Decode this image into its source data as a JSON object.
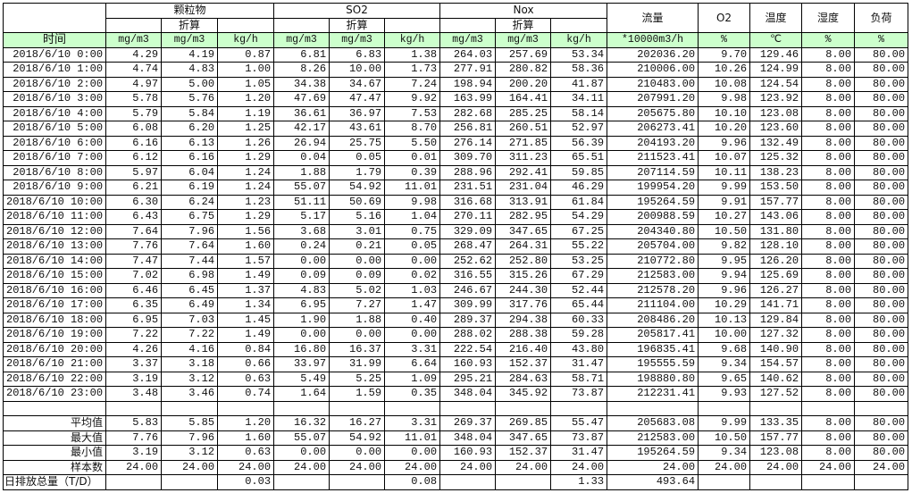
{
  "header": {
    "groups": [
      "颗粒物",
      "SO2",
      "Nox"
    ],
    "converted_label": "折算",
    "singles": [
      "流量",
      "O2",
      "温度",
      "湿度",
      "负荷"
    ],
    "time_label": "时间",
    "units": [
      "mg/m3",
      "mg/m3",
      "kg/h",
      "mg/m3",
      "mg/m3",
      "kg/h",
      "mg/m3",
      "mg/m3",
      "kg/h",
      "*10000m3/h",
      "%",
      "℃",
      "%",
      "%"
    ]
  },
  "colors": {
    "unit_row_bg": "#ccffcc",
    "border": "#000000"
  },
  "rows": [
    [
      "2018/6/10 0:00",
      "4.29",
      "4.19",
      "0.87",
      "6.81",
      "6.83",
      "1.38",
      "264.03",
      "257.69",
      "53.34",
      "202036.20",
      "9.70",
      "129.46",
      "8.00",
      "80.00"
    ],
    [
      "2018/6/10 1:00",
      "4.74",
      "4.83",
      "1.00",
      "8.26",
      "10.00",
      "1.73",
      "277.91",
      "280.82",
      "58.36",
      "210006.00",
      "10.26",
      "124.99",
      "8.00",
      "80.00"
    ],
    [
      "2018/6/10 2:00",
      "4.97",
      "5.00",
      "1.05",
      "34.38",
      "34.67",
      "7.24",
      "198.94",
      "200.20",
      "41.87",
      "210483.00",
      "10.08",
      "124.54",
      "8.00",
      "80.00"
    ],
    [
      "2018/6/10 3:00",
      "5.78",
      "5.76",
      "1.20",
      "47.69",
      "47.47",
      "9.92",
      "163.99",
      "164.41",
      "34.11",
      "207991.20",
      "9.98",
      "123.92",
      "8.00",
      "80.00"
    ],
    [
      "2018/6/10 4:00",
      "5.79",
      "5.84",
      "1.19",
      "36.61",
      "36.97",
      "7.53",
      "282.68",
      "285.25",
      "58.14",
      "205675.80",
      "10.10",
      "123.08",
      "8.00",
      "80.00"
    ],
    [
      "2018/6/10 5:00",
      "6.08",
      "6.20",
      "1.25",
      "42.17",
      "43.61",
      "8.70",
      "256.81",
      "260.51",
      "52.97",
      "206273.41",
      "10.20",
      "123.60",
      "8.00",
      "80.00"
    ],
    [
      "2018/6/10 6:00",
      "6.16",
      "6.13",
      "1.26",
      "26.94",
      "25.75",
      "5.50",
      "276.14",
      "271.85",
      "56.39",
      "204193.20",
      "9.96",
      "132.49",
      "8.00",
      "80.00"
    ],
    [
      "2018/6/10 7:00",
      "6.12",
      "6.16",
      "1.29",
      "0.04",
      "0.05",
      "0.01",
      "309.70",
      "311.23",
      "65.51",
      "211523.41",
      "10.07",
      "125.32",
      "8.00",
      "80.00"
    ],
    [
      "2018/6/10 8:00",
      "5.97",
      "6.04",
      "1.24",
      "1.88",
      "1.79",
      "0.39",
      "288.96",
      "292.41",
      "59.85",
      "207114.59",
      "10.11",
      "138.23",
      "8.00",
      "80.00"
    ],
    [
      "2018/6/10 9:00",
      "6.21",
      "6.19",
      "1.24",
      "55.07",
      "54.92",
      "11.01",
      "231.51",
      "231.04",
      "46.29",
      "199954.20",
      "9.99",
      "153.50",
      "8.00",
      "80.00"
    ],
    [
      "2018/6/10 10:00",
      "6.30",
      "6.24",
      "1.23",
      "51.11",
      "50.69",
      "9.98",
      "316.68",
      "313.91",
      "61.84",
      "195264.59",
      "9.91",
      "157.77",
      "8.00",
      "80.00"
    ],
    [
      "2018/6/10 11:00",
      "6.43",
      "6.75",
      "1.29",
      "5.17",
      "5.16",
      "1.04",
      "270.11",
      "282.95",
      "54.29",
      "200988.59",
      "10.27",
      "143.06",
      "8.00",
      "80.00"
    ],
    [
      "2018/6/10 12:00",
      "7.64",
      "7.96",
      "1.56",
      "3.68",
      "3.01",
      "0.75",
      "329.09",
      "347.65",
      "67.25",
      "204340.80",
      "10.50",
      "131.80",
      "8.00",
      "80.00"
    ],
    [
      "2018/6/10 13:00",
      "7.76",
      "7.64",
      "1.60",
      "0.24",
      "0.21",
      "0.05",
      "268.47",
      "264.31",
      "55.22",
      "205704.00",
      "9.82",
      "128.10",
      "8.00",
      "80.00"
    ],
    [
      "2018/6/10 14:00",
      "7.47",
      "7.44",
      "1.57",
      "0.00",
      "0.00",
      "0.00",
      "252.62",
      "252.80",
      "53.25",
      "210772.80",
      "9.95",
      "126.20",
      "8.00",
      "80.00"
    ],
    [
      "2018/6/10 15:00",
      "7.02",
      "6.98",
      "1.49",
      "0.09",
      "0.09",
      "0.02",
      "316.55",
      "315.26",
      "67.29",
      "212583.00",
      "9.94",
      "125.69",
      "8.00",
      "80.00"
    ],
    [
      "2018/6/10 16:00",
      "6.46",
      "6.45",
      "1.37",
      "4.83",
      "5.02",
      "1.03",
      "246.67",
      "244.30",
      "52.44",
      "212578.20",
      "9.96",
      "126.27",
      "8.00",
      "80.00"
    ],
    [
      "2018/6/10 17:00",
      "6.35",
      "6.49",
      "1.34",
      "6.95",
      "7.27",
      "1.47",
      "309.99",
      "317.76",
      "65.44",
      "211104.00",
      "10.29",
      "141.71",
      "8.00",
      "80.00"
    ],
    [
      "2018/6/10 18:00",
      "6.95",
      "7.03",
      "1.45",
      "1.90",
      "1.88",
      "0.40",
      "289.37",
      "294.38",
      "60.33",
      "208486.20",
      "10.13",
      "129.84",
      "8.00",
      "80.00"
    ],
    [
      "2018/6/10 19:00",
      "7.22",
      "7.22",
      "1.49",
      "0.00",
      "0.00",
      "0.00",
      "288.02",
      "288.38",
      "59.28",
      "205817.41",
      "10.00",
      "127.32",
      "8.00",
      "80.00"
    ],
    [
      "2018/6/10 20:00",
      "4.26",
      "4.16",
      "0.84",
      "16.80",
      "16.37",
      "3.31",
      "222.54",
      "216.40",
      "43.80",
      "196835.41",
      "9.68",
      "140.90",
      "8.00",
      "80.00"
    ],
    [
      "2018/6/10 21:00",
      "3.37",
      "3.18",
      "0.66",
      "33.97",
      "31.99",
      "6.64",
      "160.93",
      "152.37",
      "31.47",
      "195555.59",
      "9.34",
      "154.57",
      "8.00",
      "80.00"
    ],
    [
      "2018/6/10 22:00",
      "3.19",
      "3.12",
      "0.63",
      "5.49",
      "5.25",
      "1.09",
      "295.21",
      "284.63",
      "58.71",
      "198880.80",
      "9.65",
      "140.62",
      "8.00",
      "80.00"
    ],
    [
      "2018/6/10 23:00",
      "3.48",
      "3.46",
      "0.74",
      "1.64",
      "1.59",
      "0.35",
      "348.04",
      "345.92",
      "73.87",
      "212231.41",
      "9.93",
      "127.52",
      "8.00",
      "80.00"
    ]
  ],
  "stats": [
    [
      "平均值",
      "5.83",
      "5.85",
      "1.20",
      "16.32",
      "16.27",
      "3.31",
      "269.37",
      "269.85",
      "55.47",
      "205683.08",
      "9.99",
      "133.35",
      "8.00",
      "80.00"
    ],
    [
      "最大值",
      "7.76",
      "7.96",
      "1.60",
      "55.07",
      "54.92",
      "11.01",
      "348.04",
      "347.65",
      "73.87",
      "212583.00",
      "10.50",
      "157.77",
      "8.00",
      "80.00"
    ],
    [
      "最小值",
      "3.19",
      "3.12",
      "0.63",
      "0.00",
      "0.00",
      "0.00",
      "160.93",
      "152.37",
      "31.47",
      "195264.59",
      "9.34",
      "123.08",
      "8.00",
      "80.00"
    ],
    [
      "样本数",
      "24.00",
      "24.00",
      "24.00",
      "24.00",
      "24.00",
      "24.00",
      "24.00",
      "24.00",
      "24.00",
      "24.00",
      "24.00",
      "24.00",
      "24.00",
      "24.00"
    ]
  ],
  "total": [
    "日排放总量（T/D）",
    "",
    "",
    "0.03",
    "",
    "",
    "0.08",
    "",
    "",
    "1.33",
    "493.64",
    "",
    "",
    "",
    ""
  ]
}
